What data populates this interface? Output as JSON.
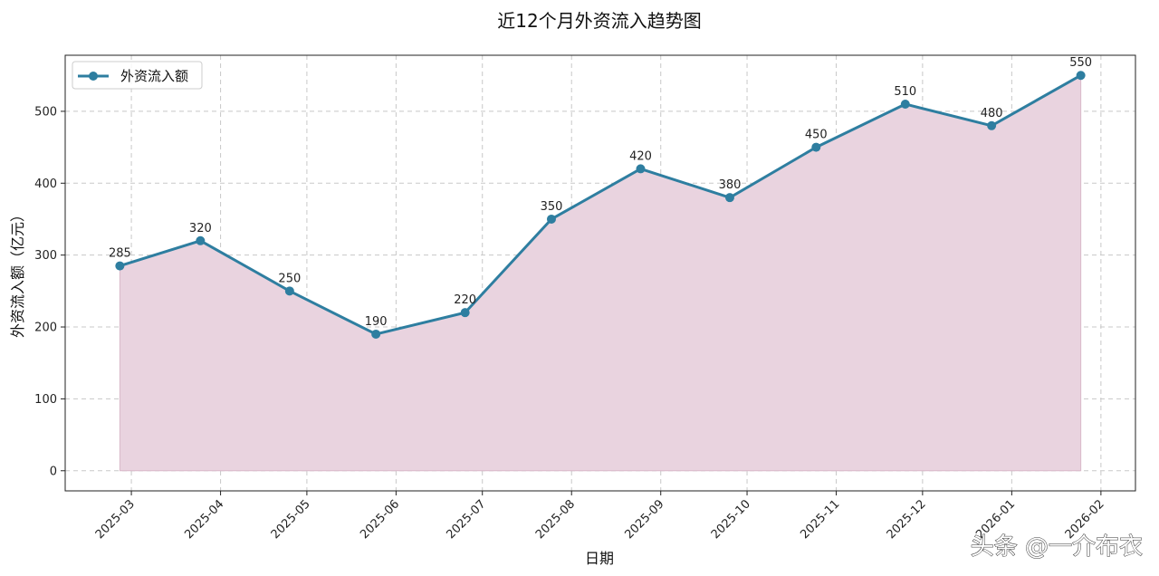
{
  "chart_data": {
    "type": "area",
    "title": "近12个月外资流入趋势图",
    "xlabel": "日期",
    "ylabel": "外资流入额（亿元）",
    "x_type": "date",
    "x": [
      "2025-02-25",
      "2025-03-25",
      "2025-04-25",
      "2025-05-25",
      "2025-06-25",
      "2025-07-25",
      "2025-08-25",
      "2025-09-25",
      "2025-10-25",
      "2025-11-25",
      "2025-12-25",
      "2026-01-25"
    ],
    "series": [
      {
        "name": "外资流入额",
        "values": [
          285,
          320,
          250,
          190,
          220,
          350,
          420,
          380,
          450,
          510,
          480,
          550
        ],
        "line_color": "#2e7ea0",
        "fill_color": "#e9d3df"
      }
    ],
    "x_ticks": [
      "2025-03",
      "2025-04",
      "2025-05",
      "2025-06",
      "2025-07",
      "2025-08",
      "2025-09",
      "2025-10",
      "2025-11",
      "2025-12",
      "2026-01",
      "2026-02"
    ],
    "y_ticks": [
      0,
      100,
      200,
      300,
      400,
      500
    ],
    "ylim": [
      -28,
      578
    ],
    "xlim": [
      "2025-02-06",
      "2026-02-13"
    ],
    "grid": true,
    "legend_position": "top-left",
    "data_labels": true
  },
  "watermark": "头条 @一介布衣"
}
